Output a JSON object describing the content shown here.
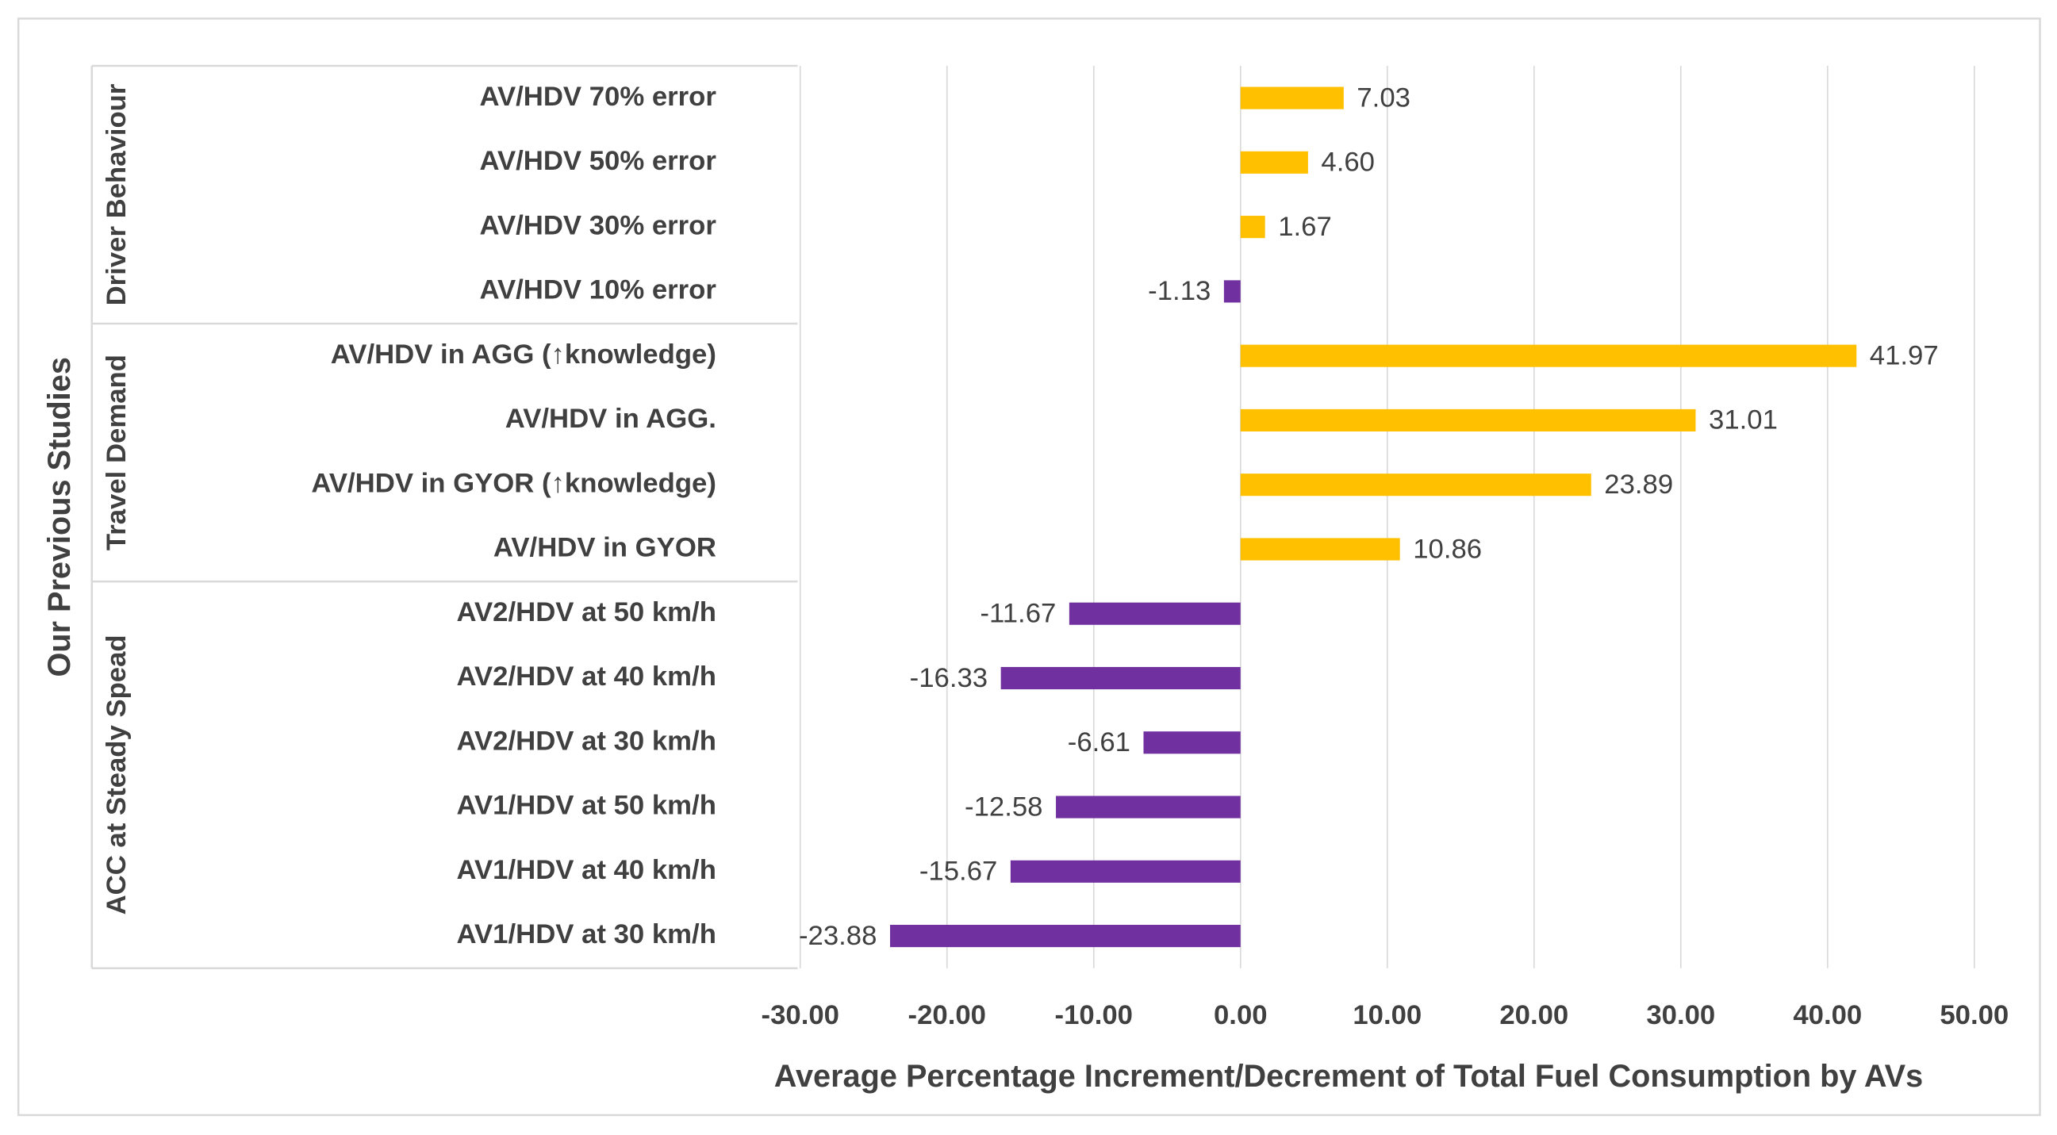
{
  "chart_data": {
    "type": "bar",
    "orientation": "horizontal",
    "y_label": "Our Previous Studies",
    "x_label": "Average Percentage Increment/Decrement of Total Fuel Consumption by AVs",
    "positive_color": "#FFC000",
    "negative_color": "#7030A0",
    "grid": true,
    "xlim": [
      -30,
      50
    ],
    "xticks": [
      {
        "value": -30,
        "label": "-30.00"
      },
      {
        "value": -20,
        "label": "-20.00"
      },
      {
        "value": -10,
        "label": "-10.00"
      },
      {
        "value": 0,
        "label": "0.00"
      },
      {
        "value": 10,
        "label": "10.00"
      },
      {
        "value": 20,
        "label": "20.00"
      },
      {
        "value": 30,
        "label": "30.00"
      },
      {
        "value": 40,
        "label": "40.00"
      },
      {
        "value": 50,
        "label": "50.00"
      }
    ],
    "groups": [
      {
        "name": "Driver Behaviour",
        "categories": [
          "AV/HDV 70% error",
          "AV/HDV 50% error",
          "AV/HDV 30% error",
          "AV/HDV 10% error"
        ],
        "values": [
          7.03,
          4.6,
          1.67,
          -1.13
        ],
        "value_labels": [
          "7.03",
          "4.60",
          "1.67",
          "-1.13"
        ]
      },
      {
        "name": "Travel Demand",
        "categories": [
          "AV/HDV in AGG (↑knowledge)",
          "AV/HDV in AGG.",
          "AV/HDV in GYOR (↑knowledge)",
          "AV/HDV in GYOR"
        ],
        "values": [
          41.97,
          31.01,
          23.89,
          10.86
        ],
        "value_labels": [
          "41.97",
          "31.01",
          "23.89",
          "10.86"
        ]
      },
      {
        "name": "ACC at Steady Spead",
        "categories": [
          "AV2/HDV at 50 km/h",
          "AV2/HDV at 40 km/h",
          "AV2/HDV at 30 km/h",
          "AV1/HDV at 50 km/h",
          "AV1/HDV at 40 km/h",
          "AV1/HDV at 30 km/h"
        ],
        "values": [
          -11.67,
          -16.33,
          -6.61,
          -12.58,
          -15.67,
          -23.88
        ],
        "value_labels": [
          "-11.67",
          "-16.33",
          "-6.61",
          "-12.58",
          "-15.67",
          "-23.88"
        ]
      }
    ]
  }
}
